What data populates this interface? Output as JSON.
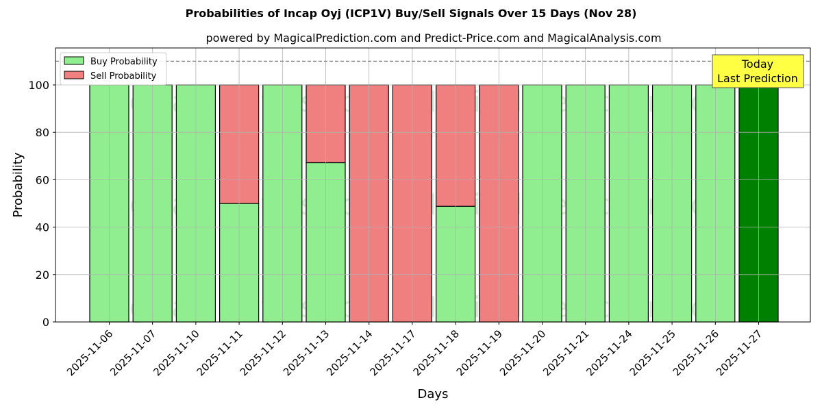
{
  "title": "Probabilities of Incap Oyj (ICP1V) Buy/Sell Signals Over 15 Days (Nov 28)",
  "subtitle": "powered by MagicalPrediction.com and Predict-Price.com and MagicalAnalysis.com",
  "watermarks": [
    "MagicalAnalysis.com",
    "MagicalPrediction.com"
  ],
  "annotation": {
    "line1": "Today",
    "line2": "Last Prediction"
  },
  "colors": {
    "buy": "#90ee90",
    "sell": "#f08080",
    "today": "#008000",
    "annotation_bg": "#ffff44"
  },
  "chart_data": {
    "type": "bar",
    "stacked": true,
    "title": "Probabilities of Incap Oyj (ICP1V) Buy/Sell Signals Over 15 Days (Nov 28)",
    "subtitle": "powered by MagicalPrediction.com and Predict-Price.com and MagicalAnalysis.com",
    "xlabel": "Days",
    "ylabel": "Probability",
    "ylim": [
      0,
      115
    ],
    "yticks": [
      0,
      20,
      40,
      60,
      80,
      100
    ],
    "grid": true,
    "legend_position": "upper left",
    "reference_line": {
      "y": 110,
      "style": "dashed"
    },
    "categories": [
      "2025-11-06",
      "2025-11-07",
      "2025-11-10",
      "2025-11-11",
      "2025-11-12",
      "2025-11-13",
      "2025-11-14",
      "2025-11-17",
      "2025-11-18",
      "2025-11-19",
      "2025-11-20",
      "2025-11-21",
      "2025-11-24",
      "2025-11-25",
      "2025-11-26",
      "2025-11-27"
    ],
    "series": [
      {
        "name": "Buy Probability",
        "values": [
          100,
          100,
          100,
          50,
          100,
          67.2,
          0,
          0,
          48.8,
          0,
          100,
          100,
          100,
          100,
          100,
          100
        ]
      },
      {
        "name": "Sell Probability",
        "values": [
          0,
          0,
          0,
          50,
          0,
          32.8,
          100,
          100,
          51.2,
          100,
          0,
          0,
          0,
          0,
          0,
          0
        ]
      }
    ],
    "annotations": [
      {
        "text": "Today\nLast Prediction",
        "x": "2025-11-27"
      }
    ]
  }
}
